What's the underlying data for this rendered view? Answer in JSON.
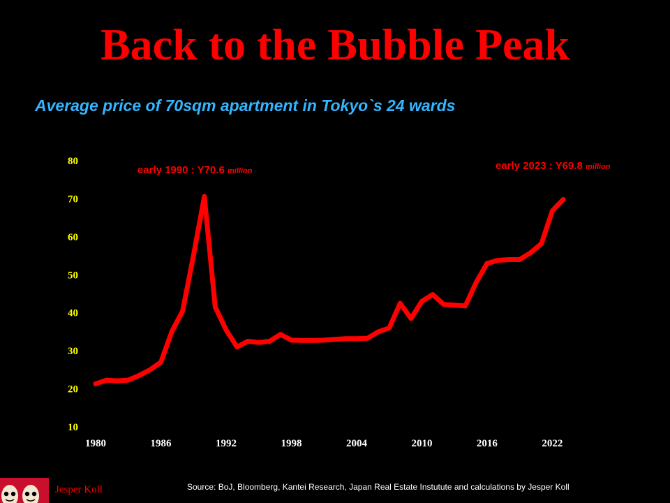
{
  "slide": {
    "title": "Back to the Bubble Peak",
    "subtitle": "Average price of 70sqm apartment in Tokyo`s 24 wards",
    "source": "Source: BoJ, Bloomberg, Kantei Research, Japan Real Estate Instutute and calculations by Jesper Koll",
    "author": "Jesper Koll",
    "logo_icon": "daruma-doll-icon"
  },
  "colors": {
    "background": "#000000",
    "title": "#ff0000",
    "subtitle": "#33b5ff",
    "line": "#ff0000",
    "y_ticks": "#ffff00",
    "x_ticks": "#ffffff",
    "annotation": "#ff0000"
  },
  "chart_data": {
    "type": "line",
    "title": "",
    "xlabel": "",
    "ylabel": "",
    "xlim": [
      1980,
      2023
    ],
    "ylim": [
      10,
      80
    ],
    "grid": false,
    "legend": "none",
    "x_ticks": [
      "1980",
      "1986",
      "1992",
      "1998",
      "2004",
      "2010",
      "2016",
      "2022"
    ],
    "y_ticks": [
      "10",
      "20",
      "30",
      "40",
      "50",
      "60",
      "70",
      "80"
    ],
    "series": [
      {
        "x": [
          1980,
          1981,
          1982,
          1983,
          1984,
          1985,
          1986,
          1987,
          1988,
          1989,
          1990,
          1991,
          1992,
          1993,
          1994,
          1995,
          1996,
          1997,
          1998,
          1999,
          2000,
          2001,
          2002,
          2003,
          2004,
          2005,
          2006,
          2007,
          2008,
          2009,
          2010,
          2011,
          2012,
          2013,
          2014,
          2015,
          2016,
          2017,
          2018,
          2019,
          2020,
          2021,
          2022,
          2023
        ],
        "y": [
          21.3,
          22.3,
          22.1,
          22.3,
          23.5,
          25.0,
          27.0,
          35.0,
          40.5,
          55.0,
          70.6,
          41.5,
          35.5,
          31.0,
          32.5,
          32.2,
          32.5,
          34.3,
          32.8,
          32.7,
          32.7,
          32.8,
          33.0,
          33.2,
          33.2,
          33.3,
          35.0,
          36.0,
          42.5,
          38.5,
          43.0,
          44.8,
          42.2,
          42.0,
          41.8,
          48.0,
          53.0,
          53.8,
          54.0,
          54.0,
          55.8,
          58.2,
          66.8,
          69.8
        ]
      }
    ],
    "annotations": [
      {
        "text": "early 1990 : Y70.6",
        "unit": "million",
        "x": 1990,
        "y": 70.6
      },
      {
        "text": "early 2023 : Y69.8",
        "unit": "million",
        "x": 2023,
        "y": 69.8
      }
    ]
  }
}
